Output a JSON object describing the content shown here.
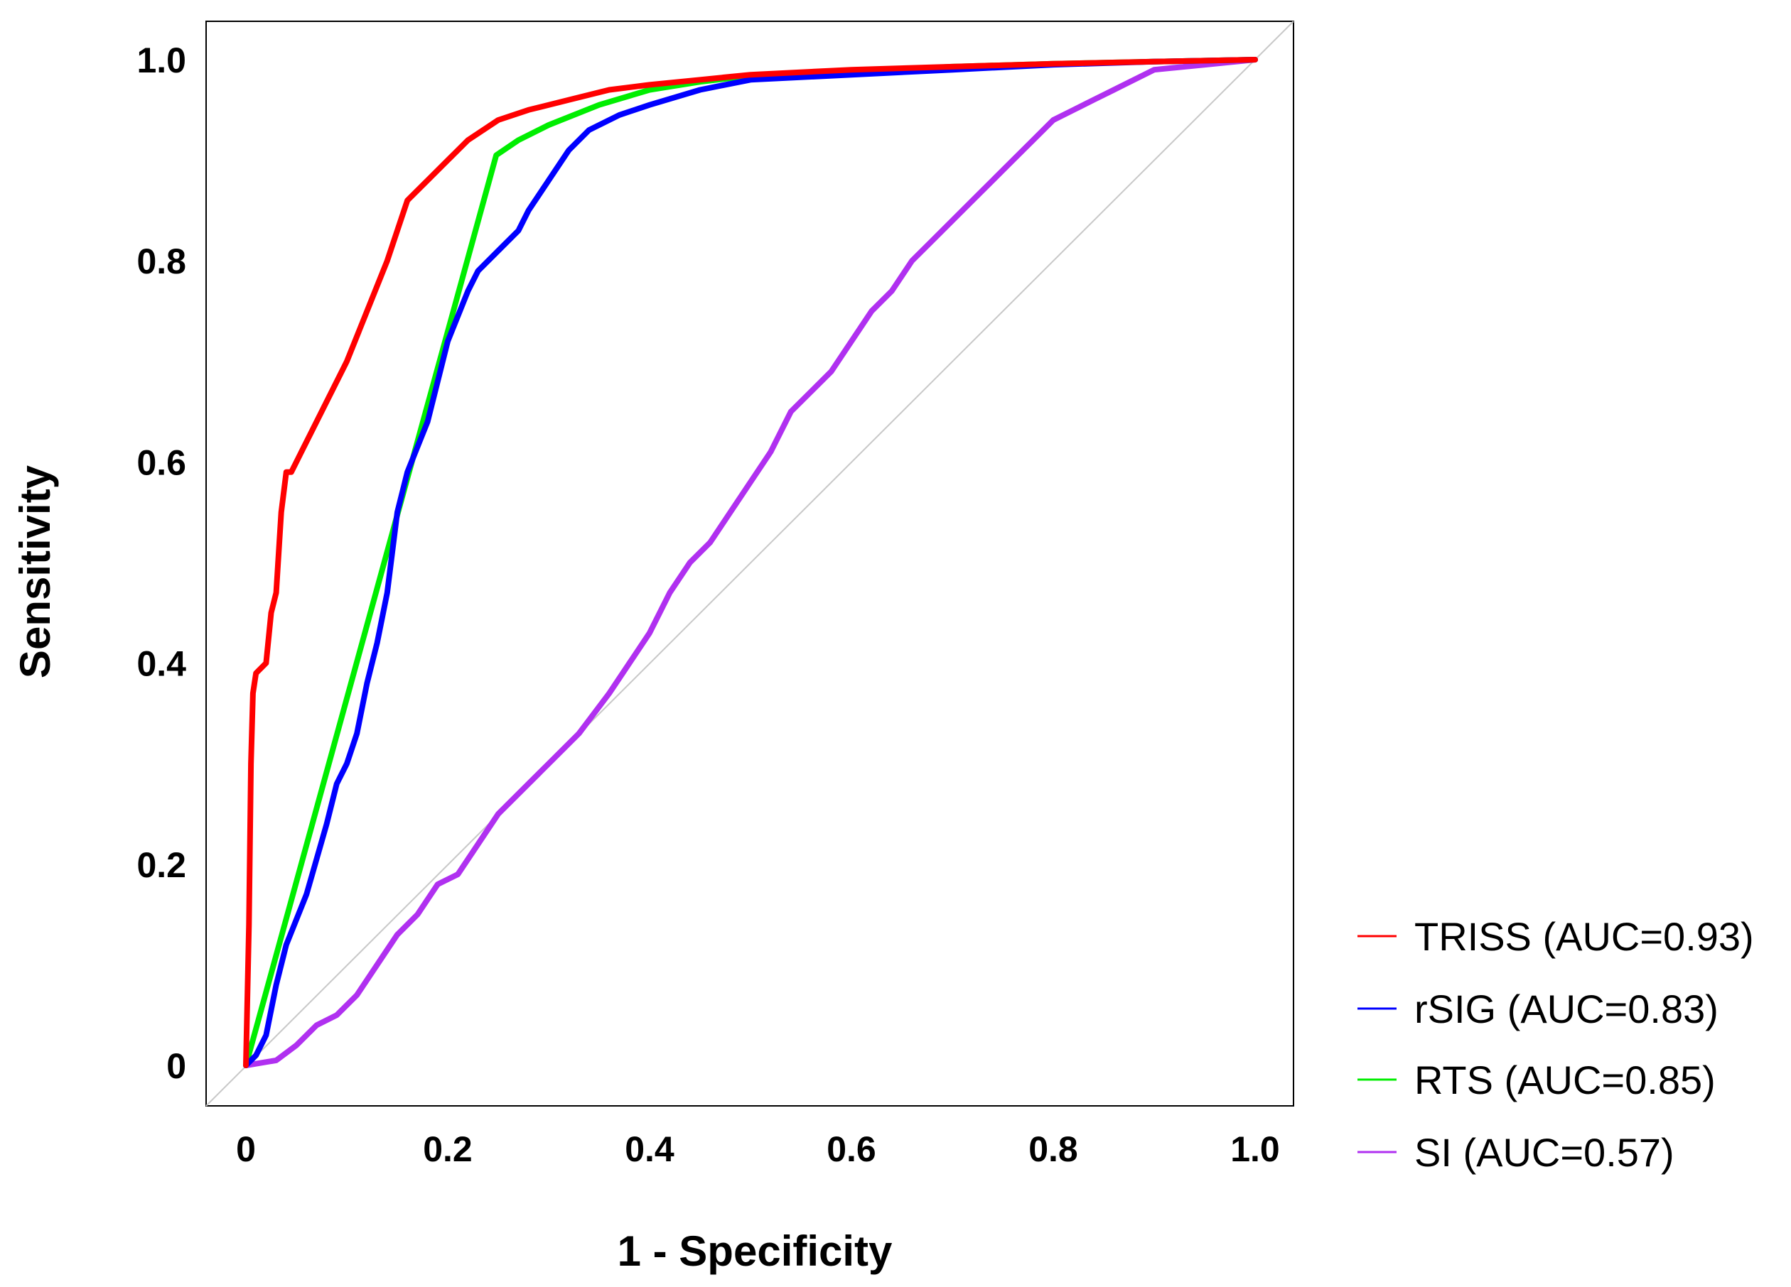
{
  "chart_data": {
    "type": "line",
    "title": "",
    "xlabel": "1 - Specificity",
    "ylabel": "Sensitivity",
    "xlim": [
      0,
      1
    ],
    "ylim": [
      0,
      1
    ],
    "x_ticks": [
      0,
      0.2,
      0.4,
      0.6,
      0.8,
      1.0
    ],
    "x_tick_labels": [
      "0",
      "0.2",
      "0.4",
      "0.6",
      "0.8",
      "1.0"
    ],
    "y_ticks": [
      0,
      0.2,
      0.4,
      0.6,
      0.8,
      1.0
    ],
    "y_tick_labels": [
      "0",
      "0.2",
      "0.4",
      "0.6",
      "0.8",
      "1.0"
    ],
    "reference_line": {
      "from": [
        0,
        0
      ],
      "to": [
        1,
        1
      ],
      "color": "#c8c8c8"
    },
    "legend_position": "bottom-right-outside",
    "series": [
      {
        "name": "TRISS",
        "label": "TRISS (AUC=0.93)",
        "auc": 0.93,
        "color": "#ff0000",
        "points": [
          [
            0,
            0
          ],
          [
            0.003,
            0.14
          ],
          [
            0.005,
            0.3
          ],
          [
            0.007,
            0.37
          ],
          [
            0.01,
            0.39
          ],
          [
            0.02,
            0.4
          ],
          [
            0.025,
            0.45
          ],
          [
            0.03,
            0.47
          ],
          [
            0.035,
            0.55
          ],
          [
            0.04,
            0.59
          ],
          [
            0.045,
            0.59
          ],
          [
            0.05,
            0.6
          ],
          [
            0.055,
            0.61
          ],
          [
            0.06,
            0.62
          ],
          [
            0.08,
            0.66
          ],
          [
            0.1,
            0.7
          ],
          [
            0.12,
            0.75
          ],
          [
            0.14,
            0.8
          ],
          [
            0.15,
            0.83
          ],
          [
            0.16,
            0.86
          ],
          [
            0.18,
            0.88
          ],
          [
            0.2,
            0.9
          ],
          [
            0.22,
            0.92
          ],
          [
            0.25,
            0.94
          ],
          [
            0.28,
            0.95
          ],
          [
            0.32,
            0.96
          ],
          [
            0.36,
            0.97
          ],
          [
            0.4,
            0.975
          ],
          [
            0.45,
            0.98
          ],
          [
            0.5,
            0.985
          ],
          [
            0.6,
            0.99
          ],
          [
            0.7,
            0.993
          ],
          [
            0.8,
            0.996
          ],
          [
            0.9,
            0.998
          ],
          [
            1.0,
            1.0
          ]
        ]
      },
      {
        "name": "rSIG",
        "label": "rSIG (AUC=0.83)",
        "auc": 0.83,
        "color": "#0000ff",
        "points": [
          [
            0,
            0
          ],
          [
            0.01,
            0.01
          ],
          [
            0.02,
            0.03
          ],
          [
            0.03,
            0.08
          ],
          [
            0.04,
            0.12
          ],
          [
            0.06,
            0.17
          ],
          [
            0.08,
            0.24
          ],
          [
            0.09,
            0.28
          ],
          [
            0.1,
            0.3
          ],
          [
            0.11,
            0.33
          ],
          [
            0.12,
            0.38
          ],
          [
            0.13,
            0.42
          ],
          [
            0.14,
            0.47
          ],
          [
            0.15,
            0.55
          ],
          [
            0.16,
            0.59
          ],
          [
            0.18,
            0.64
          ],
          [
            0.19,
            0.68
          ],
          [
            0.2,
            0.72
          ],
          [
            0.22,
            0.77
          ],
          [
            0.23,
            0.79
          ],
          [
            0.25,
            0.81
          ],
          [
            0.27,
            0.83
          ],
          [
            0.28,
            0.85
          ],
          [
            0.3,
            0.88
          ],
          [
            0.32,
            0.91
          ],
          [
            0.34,
            0.93
          ],
          [
            0.37,
            0.945
          ],
          [
            0.4,
            0.955
          ],
          [
            0.45,
            0.97
          ],
          [
            0.5,
            0.98
          ],
          [
            0.6,
            0.985
          ],
          [
            0.7,
            0.99
          ],
          [
            0.8,
            0.995
          ],
          [
            0.9,
            0.998
          ],
          [
            1.0,
            1.0
          ]
        ]
      },
      {
        "name": "RTS",
        "label": "RTS (AUC=0.85)",
        "auc": 0.85,
        "color": "#00ee00",
        "points": [
          [
            0,
            0
          ],
          [
            0.248,
            0.905
          ],
          [
            0.27,
            0.92
          ],
          [
            0.3,
            0.935
          ],
          [
            0.35,
            0.955
          ],
          [
            0.4,
            0.97
          ],
          [
            0.45,
            0.978
          ],
          [
            0.5,
            0.984
          ],
          [
            0.6,
            0.988
          ],
          [
            0.7,
            0.993
          ],
          [
            0.8,
            0.996
          ],
          [
            0.9,
            0.998
          ],
          [
            1.0,
            1.0
          ]
        ]
      },
      {
        "name": "SI",
        "label": "SI (AUC=0.57)",
        "auc": 0.57,
        "color": "#b030f0",
        "points": [
          [
            0,
            0
          ],
          [
            0.03,
            0.005
          ],
          [
            0.05,
            0.02
          ],
          [
            0.07,
            0.04
          ],
          [
            0.09,
            0.05
          ],
          [
            0.11,
            0.07
          ],
          [
            0.13,
            0.1
          ],
          [
            0.15,
            0.13
          ],
          [
            0.17,
            0.15
          ],
          [
            0.19,
            0.18
          ],
          [
            0.21,
            0.19
          ],
          [
            0.23,
            0.22
          ],
          [
            0.25,
            0.25
          ],
          [
            0.28,
            0.28
          ],
          [
            0.3,
            0.3
          ],
          [
            0.33,
            0.33
          ],
          [
            0.36,
            0.37
          ],
          [
            0.38,
            0.4
          ],
          [
            0.4,
            0.43
          ],
          [
            0.42,
            0.47
          ],
          [
            0.44,
            0.5
          ],
          [
            0.46,
            0.52
          ],
          [
            0.48,
            0.55
          ],
          [
            0.5,
            0.58
          ],
          [
            0.52,
            0.61
          ],
          [
            0.54,
            0.65
          ],
          [
            0.56,
            0.67
          ],
          [
            0.58,
            0.69
          ],
          [
            0.6,
            0.72
          ],
          [
            0.62,
            0.75
          ],
          [
            0.64,
            0.77
          ],
          [
            0.66,
            0.8
          ],
          [
            0.68,
            0.82
          ],
          [
            0.7,
            0.84
          ],
          [
            0.72,
            0.86
          ],
          [
            0.74,
            0.88
          ],
          [
            0.76,
            0.9
          ],
          [
            0.78,
            0.92
          ],
          [
            0.8,
            0.94
          ],
          [
            0.82,
            0.95
          ],
          [
            0.84,
            0.96
          ],
          [
            0.86,
            0.97
          ],
          [
            0.88,
            0.98
          ],
          [
            0.9,
            0.99
          ],
          [
            0.95,
            0.995
          ],
          [
            1.0,
            1.0
          ]
        ]
      }
    ]
  }
}
